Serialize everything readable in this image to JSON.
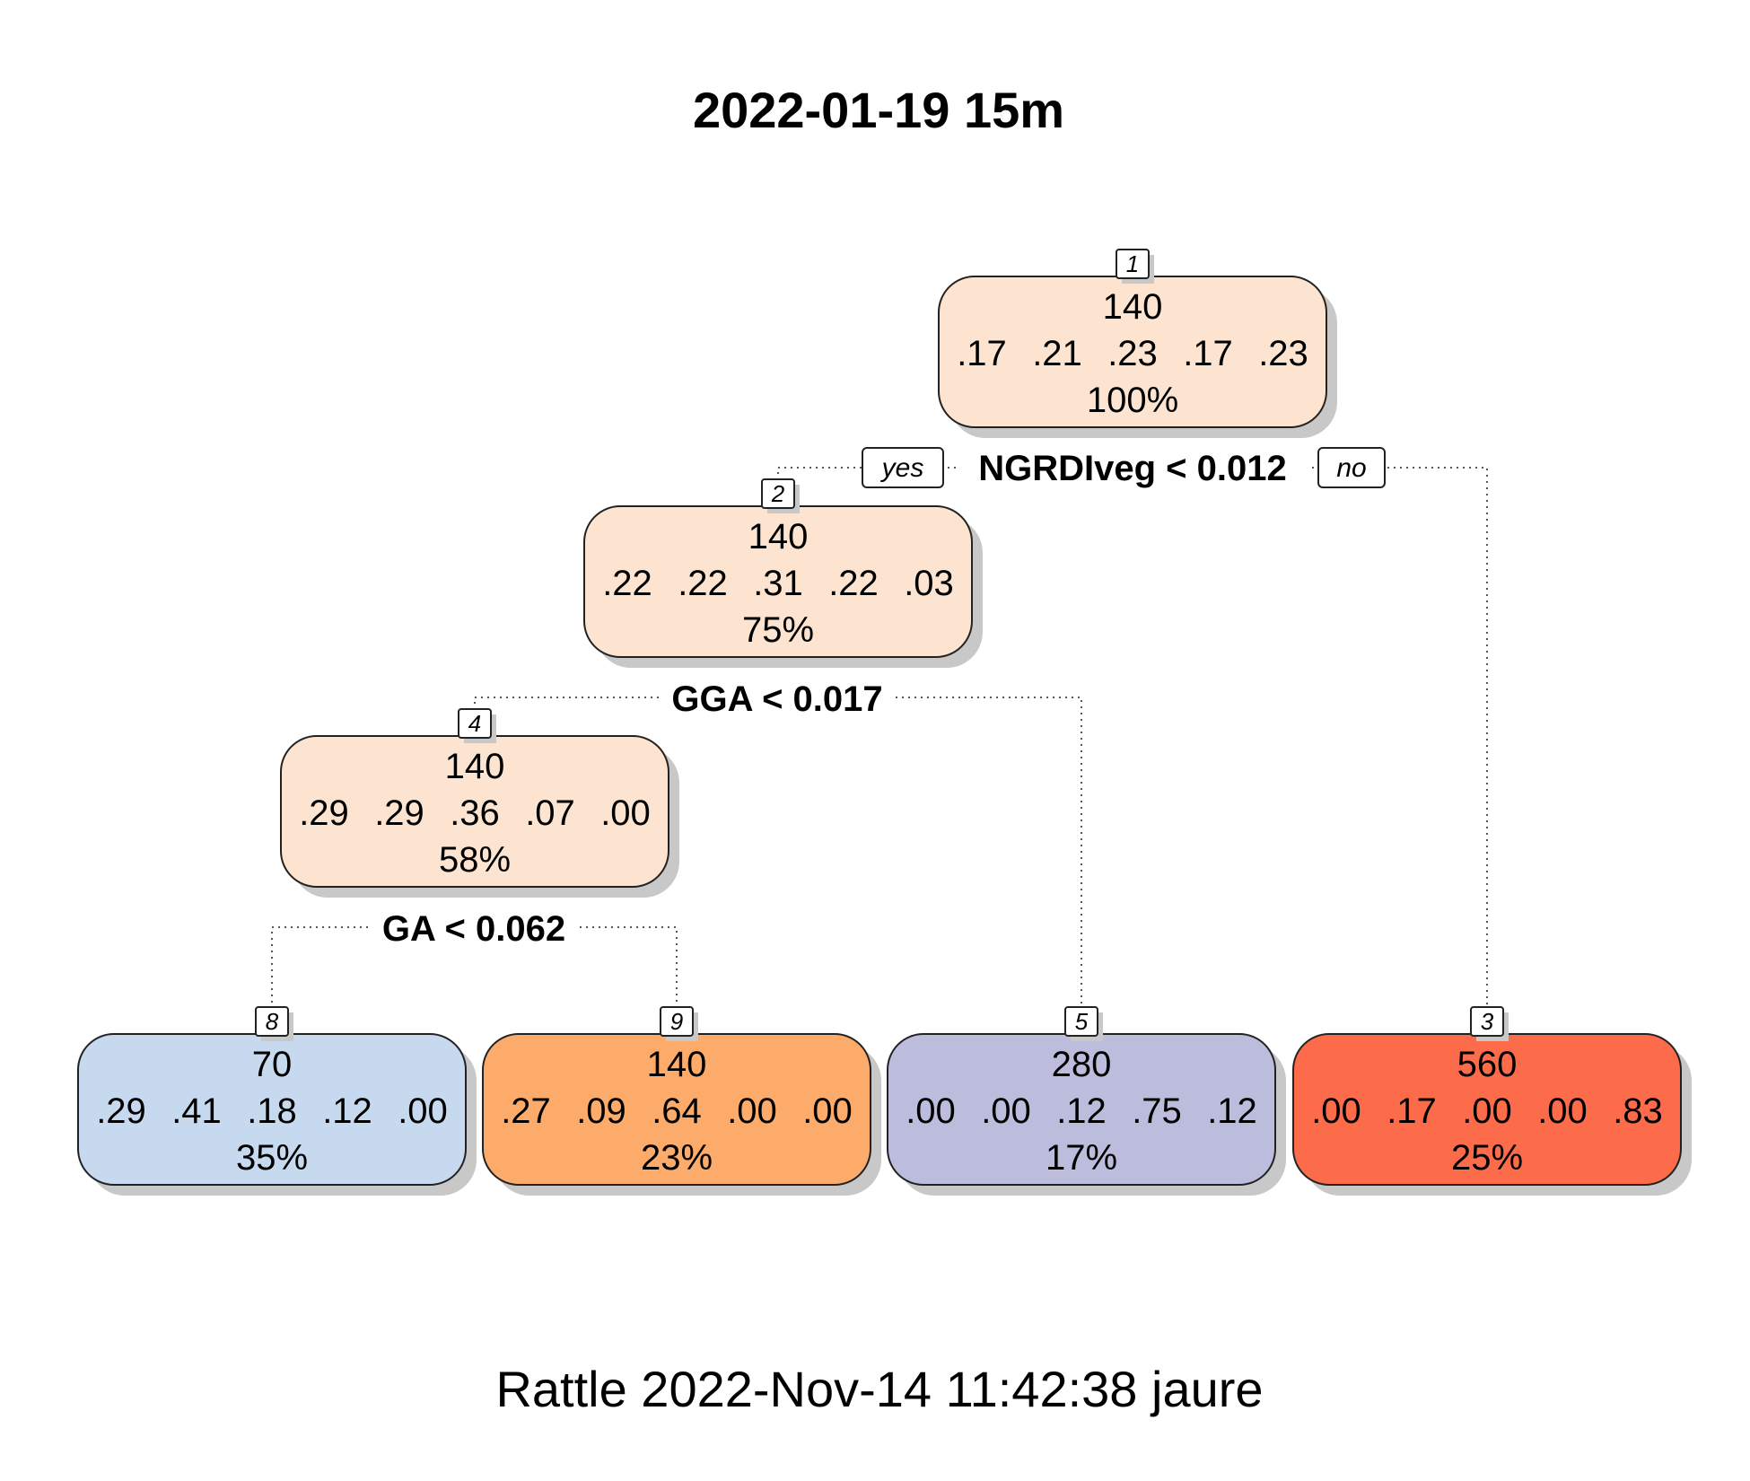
{
  "title": "2022-01-19 15m",
  "footer": "Rattle 2022-Nov-14 11:42:38 jaure",
  "edge_labels": {
    "yes": "yes",
    "no": "no"
  },
  "nodes": [
    {
      "id": "1",
      "value": "140",
      "probs": [
        ".17",
        ".21",
        ".23",
        ".17",
        ".23"
      ],
      "pct": "100%",
      "color": "#fce4d0"
    },
    {
      "id": "2",
      "value": "140",
      "probs": [
        ".22",
        ".22",
        ".31",
        ".22",
        ".03"
      ],
      "pct": "75%",
      "color": "#fce4d0"
    },
    {
      "id": "4",
      "value": "140",
      "probs": [
        ".29",
        ".29",
        ".36",
        ".07",
        ".00"
      ],
      "pct": "58%",
      "color": "#fce4d0"
    },
    {
      "id": "8",
      "value": "70",
      "probs": [
        ".29",
        ".41",
        ".18",
        ".12",
        ".00"
      ],
      "pct": "35%",
      "color": "#c6d9ee"
    },
    {
      "id": "9",
      "value": "140",
      "probs": [
        ".27",
        ".09",
        ".64",
        ".00",
        ".00"
      ],
      "pct": "23%",
      "color": "#fcab6a"
    },
    {
      "id": "5",
      "value": "280",
      "probs": [
        ".00",
        ".00",
        ".12",
        ".75",
        ".12"
      ],
      "pct": "17%",
      "color": "#bcbddc"
    },
    {
      "id": "3",
      "value": "560",
      "probs": [
        ".00",
        ".17",
        ".00",
        ".00",
        ".83"
      ],
      "pct": "25%",
      "color": "#fc6c4a"
    }
  ],
  "splits": [
    {
      "node": "1",
      "label": "NGRDIveg < 0.012"
    },
    {
      "node": "2",
      "label": "GGA < 0.017"
    },
    {
      "node": "4",
      "label": "GA < 0.062"
    }
  ]
}
